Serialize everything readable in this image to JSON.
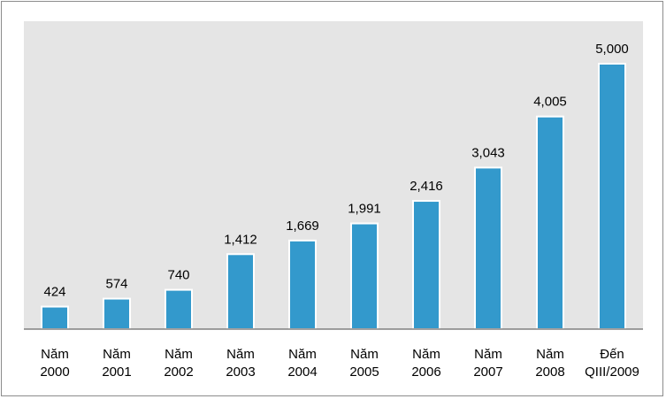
{
  "chart_data": {
    "type": "bar",
    "title": "",
    "xlabel": "",
    "ylabel": "",
    "ylim": [
      0,
      5800
    ],
    "grid": false,
    "legend": "none",
    "categories": [
      [
        "Năm",
        "2000"
      ],
      [
        "Năm",
        "2001"
      ],
      [
        "Năm",
        "2002"
      ],
      [
        "Năm",
        "2003"
      ],
      [
        "Năm",
        "2004"
      ],
      [
        "Năm",
        "2005"
      ],
      [
        "Năm",
        "2006"
      ],
      [
        "Năm",
        "2007"
      ],
      [
        "Năm",
        "2008"
      ],
      [
        "Đến",
        "QIII/2009"
      ]
    ],
    "values": [
      424,
      574,
      740,
      1412,
      1669,
      1991,
      2416,
      3043,
      4005,
      5000
    ],
    "value_labels": [
      "424",
      "574",
      "740",
      "1,412",
      "1,669",
      "1,991",
      "2,416",
      "3,043",
      "4,005",
      "5,000"
    ],
    "colors": {
      "bar": "#3399cc",
      "bar_edge": "#ffffff",
      "plot_background": "#e5e5e5",
      "axis": "#808080"
    }
  }
}
